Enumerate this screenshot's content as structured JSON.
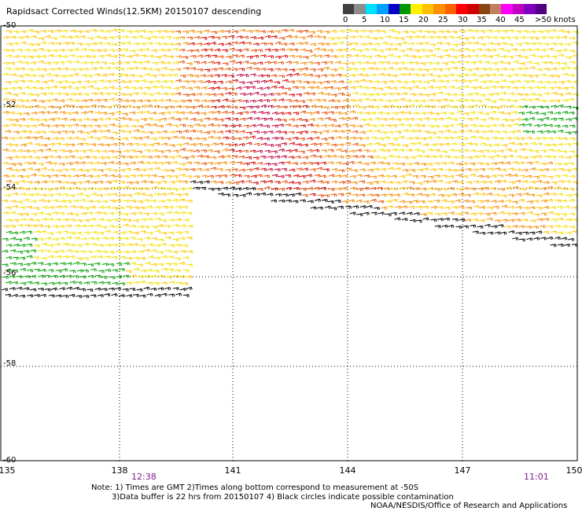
{
  "title": "Rapidsact Corrected Winds(12.5KM) 20150107 descending",
  "legend": {
    "colors": [
      "#404040",
      "#8c8c8c",
      "#00e0ff",
      "#00a0ff",
      "#0000c8",
      "#009600",
      "#fff000",
      "#ffc000",
      "#ff9000",
      "#ff6000",
      "#ff0000",
      "#d00000",
      "#8b4513",
      "#c08060",
      "#ff00ff",
      "#c000c0",
      "#8000c0",
      "#500080"
    ],
    "labels": [
      "0",
      "5",
      "10",
      "15",
      "20",
      "25",
      "30",
      "35",
      "40",
      "45",
      ">50 knots"
    ]
  },
  "map": {
    "lon_range": [
      135,
      150
    ],
    "lat_range": [
      -60,
      -50
    ],
    "lon_ticks": [
      "135",
      "138",
      "141",
      "144",
      "147",
      "150"
    ],
    "lat_ticks": [
      "-50",
      "-52",
      "-54",
      "-56",
      "-58",
      "-60"
    ],
    "times": [
      "12:38",
      "11:01"
    ],
    "wind_colors": {
      "black": "#000000",
      "green": "#00a000",
      "yellow": "#f0e000",
      "gold": "#ffc400",
      "orange": "#f58a00",
      "red_orange": "#e84a00",
      "red": "#d40000",
      "crimson": "#c0003c"
    }
  },
  "notes": {
    "line1": "Note: 1) Times are GMT 2)Times along bottom correspond to measurement at -50S",
    "line2": "3)Data buffer is 22 hrs from 20150107 4) Black circles indicate possible contamination",
    "line3": "NOAA/NESDIS/Office of Research and Applications"
  }
}
